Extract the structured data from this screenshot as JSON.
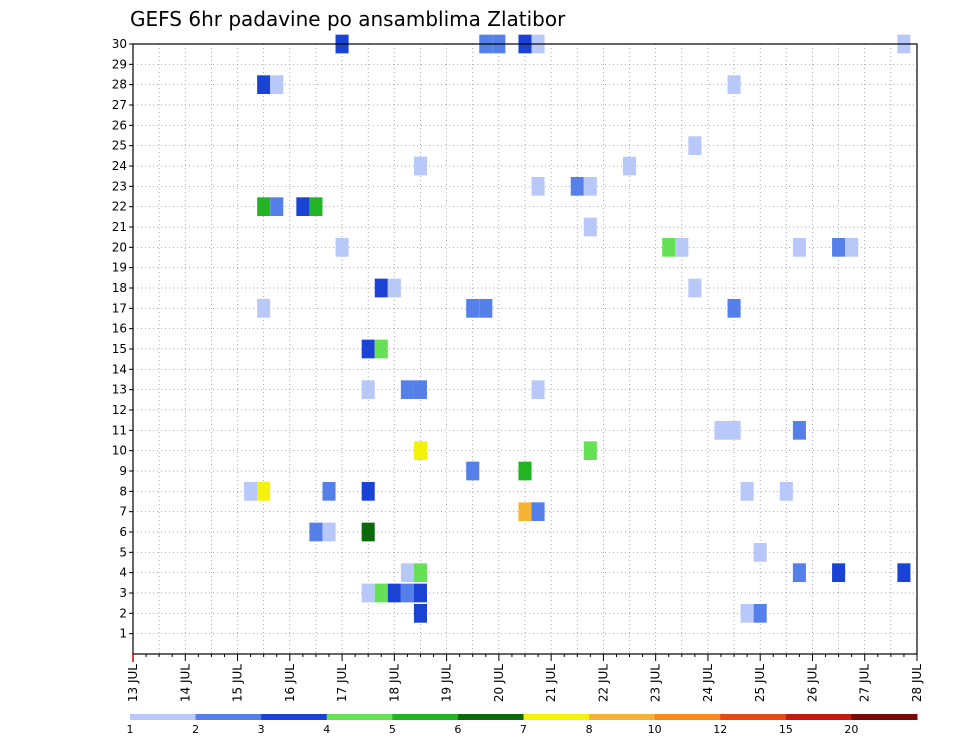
{
  "chart_data": {
    "type": "heatmap",
    "title": "GEFS 6hr padavine po ansamblima Zlatibor",
    "x_tick_labels": [
      "13 JUL",
      "14 JUL",
      "15 JUL",
      "16 JUL",
      "17 JUL",
      "18 JUL",
      "19 JUL",
      "20 JUL",
      "21 JUL",
      "22 JUL",
      "23 JUL",
      "24 JUL",
      "25 JUL",
      "26 JUL",
      "27 JUL",
      "28 JUL"
    ],
    "x_range_days": [
      13,
      28
    ],
    "y_tick_labels": [
      "1",
      "2",
      "3",
      "4",
      "5",
      "6",
      "7",
      "8",
      "9",
      "10",
      "11",
      "12",
      "13",
      "14",
      "15",
      "16",
      "17",
      "18",
      "19",
      "20",
      "21",
      "22",
      "23",
      "24",
      "25",
      "26",
      "27",
      "28",
      "29",
      "30"
    ],
    "y_range": [
      0,
      30
    ],
    "grid": true,
    "colorbar": {
      "labels": [
        "1",
        "2",
        "3",
        "4",
        "5",
        "6",
        "7",
        "8",
        "10",
        "12",
        "15",
        "20"
      ],
      "colors": [
        "#b8c8f8",
        "#5580ea",
        "#1a43d6",
        "#66e055",
        "#22b422",
        "#0a6a0a",
        "#f2f20a",
        "#f7b434",
        "#f78a18",
        "#e44a14",
        "#c41a10",
        "#7a0a0a"
      ]
    },
    "cells": [
      {
        "m": 30,
        "d": 17.0,
        "v": 3
      },
      {
        "m": 30,
        "d": 19.75,
        "v": 2
      },
      {
        "m": 30,
        "d": 20.0,
        "v": 2
      },
      {
        "m": 30,
        "d": 20.5,
        "v": 3
      },
      {
        "m": 30,
        "d": 20.75,
        "v": 1
      },
      {
        "m": 30,
        "d": 27.75,
        "v": 1
      },
      {
        "m": 28,
        "d": 15.5,
        "v": 3
      },
      {
        "m": 28,
        "d": 15.75,
        "v": 1
      },
      {
        "m": 28,
        "d": 24.5,
        "v": 1
      },
      {
        "m": 25,
        "d": 23.75,
        "v": 1
      },
      {
        "m": 24,
        "d": 18.5,
        "v": 1
      },
      {
        "m": 24,
        "d": 22.5,
        "v": 1
      },
      {
        "m": 23,
        "d": 20.75,
        "v": 1
      },
      {
        "m": 23,
        "d": 21.5,
        "v": 2
      },
      {
        "m": 23,
        "d": 21.75,
        "v": 1
      },
      {
        "m": 22,
        "d": 15.5,
        "v": 5
      },
      {
        "m": 22,
        "d": 15.75,
        "v": 2
      },
      {
        "m": 22,
        "d": 16.25,
        "v": 3
      },
      {
        "m": 22,
        "d": 16.5,
        "v": 5
      },
      {
        "m": 21,
        "d": 21.75,
        "v": 1
      },
      {
        "m": 20,
        "d": 17.0,
        "v": 1
      },
      {
        "m": 20,
        "d": 23.25,
        "v": 4
      },
      {
        "m": 20,
        "d": 23.5,
        "v": 1
      },
      {
        "m": 20,
        "d": 25.75,
        "v": 1
      },
      {
        "m": 20,
        "d": 26.5,
        "v": 2
      },
      {
        "m": 20,
        "d": 26.75,
        "v": 1
      },
      {
        "m": 18,
        "d": 17.75,
        "v": 3
      },
      {
        "m": 18,
        "d": 18.0,
        "v": 1
      },
      {
        "m": 18,
        "d": 23.75,
        "v": 1
      },
      {
        "m": 17,
        "d": 15.5,
        "v": 1
      },
      {
        "m": 17,
        "d": 19.5,
        "v": 2
      },
      {
        "m": 17,
        "d": 19.75,
        "v": 2
      },
      {
        "m": 17,
        "d": 24.5,
        "v": 2
      },
      {
        "m": 15,
        "d": 17.5,
        "v": 3
      },
      {
        "m": 15,
        "d": 17.75,
        "v": 4
      },
      {
        "m": 13,
        "d": 17.5,
        "v": 1
      },
      {
        "m": 13,
        "d": 18.25,
        "v": 2
      },
      {
        "m": 13,
        "d": 18.5,
        "v": 2
      },
      {
        "m": 13,
        "d": 20.75,
        "v": 1
      },
      {
        "m": 11,
        "d": 24.25,
        "v": 1
      },
      {
        "m": 11,
        "d": 24.5,
        "v": 1
      },
      {
        "m": 11,
        "d": 25.75,
        "v": 2
      },
      {
        "m": 10,
        "d": 18.5,
        "v": 7
      },
      {
        "m": 10,
        "d": 21.75,
        "v": 4
      },
      {
        "m": 9,
        "d": 19.5,
        "v": 2
      },
      {
        "m": 9,
        "d": 20.5,
        "v": 5
      },
      {
        "m": 8,
        "d": 15.25,
        "v": 1
      },
      {
        "m": 8,
        "d": 15.5,
        "v": 7
      },
      {
        "m": 8,
        "d": 16.75,
        "v": 2
      },
      {
        "m": 8,
        "d": 17.5,
        "v": 3
      },
      {
        "m": 8,
        "d": 24.75,
        "v": 1
      },
      {
        "m": 8,
        "d": 25.5,
        "v": 1
      },
      {
        "m": 7,
        "d": 20.5,
        "v": 8
      },
      {
        "m": 7,
        "d": 20.75,
        "v": 2
      },
      {
        "m": 6,
        "d": 16.5,
        "v": 2
      },
      {
        "m": 6,
        "d": 16.75,
        "v": 1
      },
      {
        "m": 6,
        "d": 17.5,
        "v": 6
      },
      {
        "m": 5,
        "d": 25.0,
        "v": 1
      },
      {
        "m": 4,
        "d": 18.25,
        "v": 1
      },
      {
        "m": 4,
        "d": 18.5,
        "v": 4
      },
      {
        "m": 4,
        "d": 25.75,
        "v": 2
      },
      {
        "m": 4,
        "d": 26.5,
        "v": 3
      },
      {
        "m": 4,
        "d": 27.75,
        "v": 3
      },
      {
        "m": 3,
        "d": 17.5,
        "v": 1
      },
      {
        "m": 3,
        "d": 17.75,
        "v": 4
      },
      {
        "m": 3,
        "d": 18.0,
        "v": 3
      },
      {
        "m": 3,
        "d": 18.25,
        "v": 2
      },
      {
        "m": 3,
        "d": 18.5,
        "v": 3
      },
      {
        "m": 2,
        "d": 18.5,
        "v": 3
      },
      {
        "m": 2,
        "d": 24.75,
        "v": 1
      },
      {
        "m": 2,
        "d": 25.0,
        "v": 2
      }
    ]
  }
}
